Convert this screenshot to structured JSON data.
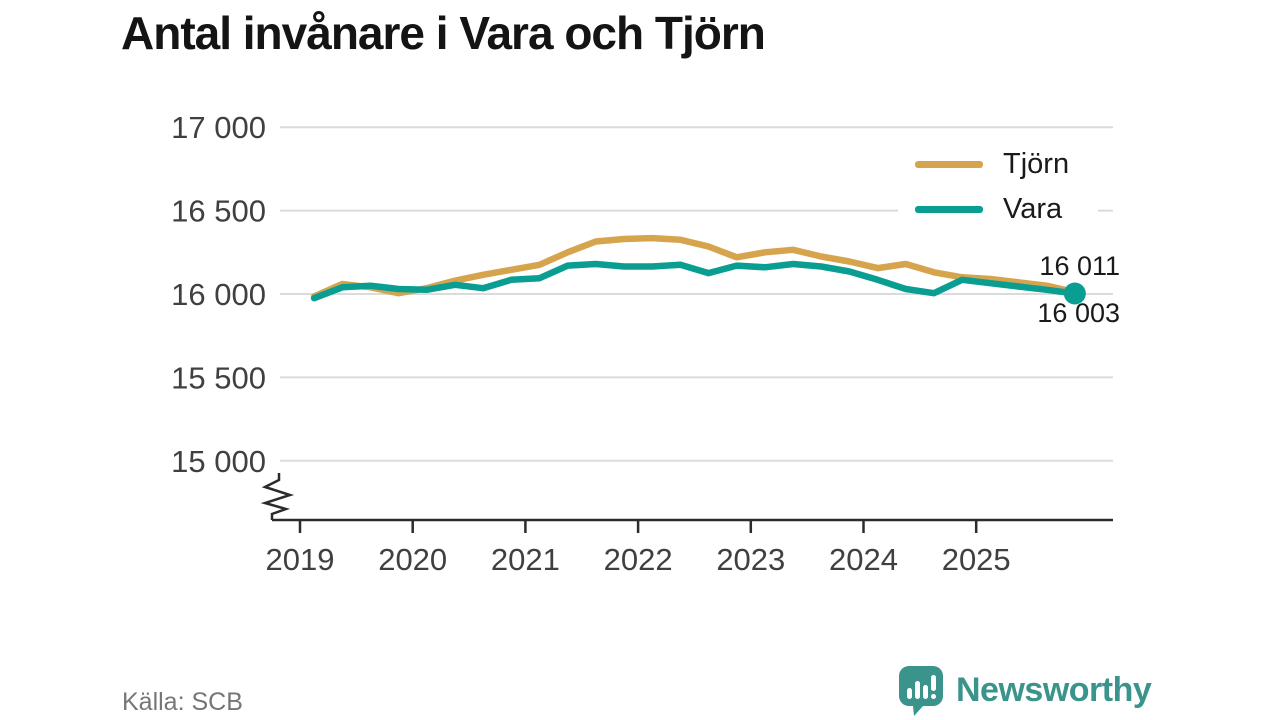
{
  "title": "Antal invånare i Vara och Tjörn",
  "source": "Källa: SCB",
  "branding": {
    "logo_text": "Newsworthy",
    "logo_icon": "bar-chart-speech-bubble-icon",
    "brand_color": "#3A948B"
  },
  "legend": {
    "items": [
      {
        "label": "Tjörn",
        "color": "#D7A44E"
      },
      {
        "label": "Vara",
        "color": "#0A9E92"
      }
    ]
  },
  "end_labels": {
    "top": "16 011",
    "bottom": "16 003"
  },
  "chart_data": {
    "type": "line",
    "title": "Antal invånare i Vara och Tjörn",
    "xlabel": "",
    "ylabel": "",
    "grid": "horizontal",
    "legend_position": "top-right-inside",
    "axis_break": true,
    "ylim": [
      15000,
      17000
    ],
    "y_tick_values": [
      17000,
      16500,
      16000,
      15500,
      15000
    ],
    "y_tick_labels": [
      "17 000",
      "16 500",
      "16 000",
      "15 500",
      "15 000"
    ],
    "x_tick_values": [
      2019,
      2020,
      2021,
      2022,
      2023,
      2024,
      2025
    ],
    "x_tick_labels": [
      "2019",
      "2020",
      "2021",
      "2022",
      "2023",
      "2024",
      "2025"
    ],
    "x_start": 2019.125,
    "x_step": 0.25,
    "x_unit": "quarter",
    "series": [
      {
        "name": "Tjörn",
        "color": "#D7A44E",
        "end_value_label": "16 011",
        "values": [
          15985,
          16060,
          16040,
          16005,
          16035,
          16080,
          16115,
          16145,
          16175,
          16250,
          16315,
          16330,
          16335,
          16325,
          16285,
          16220,
          16250,
          16265,
          16225,
          16195,
          16155,
          16180,
          16130,
          16100,
          16090,
          16070,
          16050,
          16011
        ]
      },
      {
        "name": "Vara",
        "color": "#0A9E92",
        "end_marker": true,
        "end_value_label": "16 003",
        "values": [
          15975,
          16040,
          16050,
          16030,
          16025,
          16055,
          16035,
          16085,
          16095,
          16170,
          16180,
          16165,
          16165,
          16175,
          16125,
          16170,
          16160,
          16180,
          16165,
          16135,
          16085,
          16030,
          16005,
          16085,
          16065,
          16045,
          16025,
          16003
        ]
      }
    ]
  }
}
